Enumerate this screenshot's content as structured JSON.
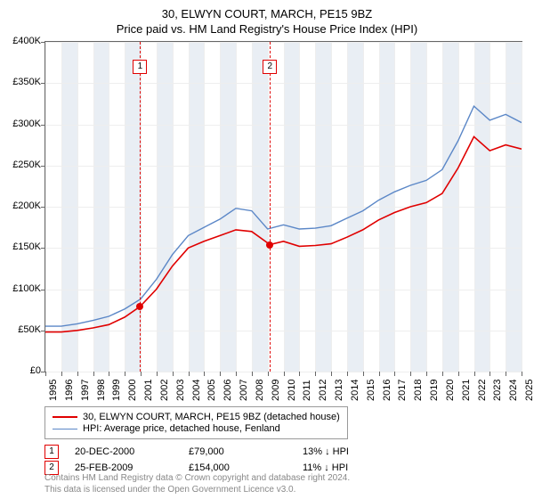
{
  "title_line1": "30, ELWYN COURT, MARCH, PE15 9BZ",
  "title_line2": "Price paid vs. HM Land Registry's House Price Index (HPI)",
  "chart": {
    "type": "line",
    "x_start": 1995,
    "x_end": 2025,
    "x_ticks": [
      1995,
      1996,
      1997,
      1998,
      1999,
      2000,
      2001,
      2002,
      2003,
      2004,
      2005,
      2006,
      2007,
      2008,
      2009,
      2010,
      2011,
      2012,
      2013,
      2014,
      2015,
      2016,
      2017,
      2018,
      2019,
      2020,
      2021,
      2022,
      2023,
      2024,
      2025
    ],
    "y_min": 0,
    "y_max": 400000,
    "y_ticks": [
      0,
      50000,
      100000,
      150000,
      200000,
      250000,
      300000,
      350000,
      400000
    ],
    "y_tick_labels": [
      "£0",
      "£50K",
      "£100K",
      "£150K",
      "£200K",
      "£250K",
      "£300K",
      "£350K",
      "£400K"
    ],
    "background": "#ffffff",
    "grid_color": "#eeeeee",
    "axis_color": "#666666",
    "band_years": [
      1996,
      1998,
      2000,
      2002,
      2004,
      2006,
      2008,
      2010,
      2012,
      2014,
      2016,
      2018,
      2020,
      2022,
      2024
    ],
    "band_color": "#dfe7f0",
    "series": [
      {
        "name": "30, ELWYN COURT, MARCH, PE15 9BZ (detached house)",
        "color": "#e00000",
        "width": 1.6,
        "x": [
          1995,
          1996,
          1997,
          1998,
          1999,
          2000,
          2000.97,
          2002,
          2003,
          2004,
          2005,
          2006,
          2007,
          2008,
          2009.15,
          2010,
          2011,
          2012,
          2013,
          2014,
          2015,
          2016,
          2017,
          2018,
          2019,
          2020,
          2021,
          2022,
          2023,
          2024,
          2025
        ],
        "y": [
          48000,
          48000,
          50000,
          53000,
          57000,
          66000,
          79000,
          100000,
          128000,
          150000,
          158000,
          165000,
          172000,
          170000,
          154000,
          158000,
          152000,
          153000,
          155000,
          163000,
          172000,
          184000,
          193000,
          200000,
          205000,
          216000,
          247000,
          285000,
          268000,
          275000,
          270000
        ]
      },
      {
        "name": "HPI: Average price, detached house, Fenland",
        "color": "#5b87c7",
        "width": 1.4,
        "x": [
          1995,
          1996,
          1997,
          1998,
          1999,
          2000,
          2001,
          2002,
          2003,
          2004,
          2005,
          2006,
          2007,
          2008,
          2009,
          2010,
          2011,
          2012,
          2013,
          2014,
          2015,
          2016,
          2017,
          2018,
          2019,
          2020,
          2021,
          2022,
          2023,
          2024,
          2025
        ],
        "y": [
          55000,
          55000,
          58000,
          62000,
          67000,
          76000,
          88000,
          112000,
          142000,
          165000,
          175000,
          185000,
          198000,
          195000,
          173000,
          178000,
          173000,
          174000,
          177000,
          186000,
          195000,
          208000,
          218000,
          226000,
          232000,
          245000,
          280000,
          322000,
          305000,
          312000,
          302000
        ]
      }
    ],
    "events": [
      {
        "num": "1",
        "year": 2000.97,
        "price": 79000,
        "date": "20-DEC-2000",
        "price_label": "£79,000",
        "delta": "13% ↓ HPI"
      },
      {
        "num": "2",
        "year": 2009.15,
        "price": 154000,
        "date": "25-FEB-2009",
        "price_label": "£154,000",
        "delta": "11% ↓ HPI"
      }
    ]
  },
  "legend_title1": "30, ELWYN COURT, MARCH, PE15 9BZ (detached house)",
  "legend_title2": "HPI: Average price, detached house, Fenland",
  "footer1": "Contains HM Land Registry data © Crown copyright and database right 2024.",
  "footer2": "This data is licensed under the Open Government Licence v3.0."
}
